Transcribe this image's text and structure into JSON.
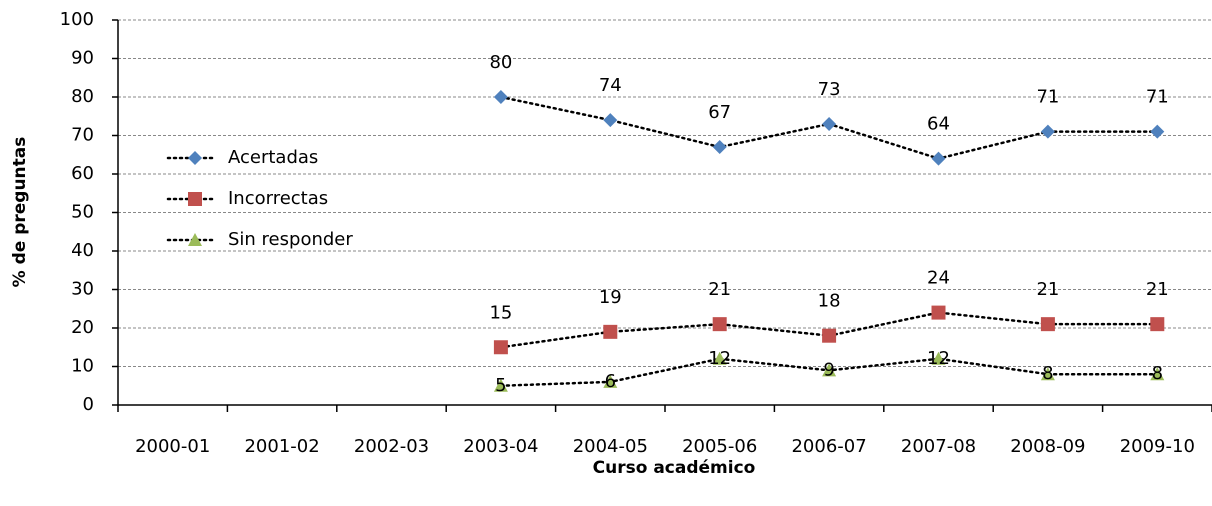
{
  "chart_data": {
    "type": "line",
    "categories": [
      "2000-01",
      "2001-02",
      "2002-03",
      "2003-04",
      "2004-05",
      "2005-06",
      "2006-07",
      "2007-08",
      "2008-09",
      "2009-10"
    ],
    "series": [
      {
        "name": "Acertadas",
        "color": "#4f81bd",
        "marker": "diamond",
        "values": [
          null,
          null,
          null,
          80,
          74,
          67,
          73,
          64,
          71,
          71
        ]
      },
      {
        "name": "Incorrectas",
        "color": "#c0504d",
        "marker": "square",
        "values": [
          null,
          null,
          null,
          15,
          19,
          21,
          18,
          24,
          21,
          21
        ]
      },
      {
        "name": "Sin responder",
        "color": "#9bbb59",
        "marker": "triangle",
        "values": [
          null,
          null,
          null,
          5,
          6,
          12,
          9,
          12,
          8,
          8
        ]
      }
    ],
    "ylim": [
      0,
      100
    ],
    "yticks": [
      0,
      10,
      20,
      30,
      40,
      50,
      60,
      70,
      80,
      90,
      100
    ],
    "xlabel": "Curso académico",
    "ylabel": "% de preguntas",
    "grid": true,
    "legend_position": "left"
  }
}
